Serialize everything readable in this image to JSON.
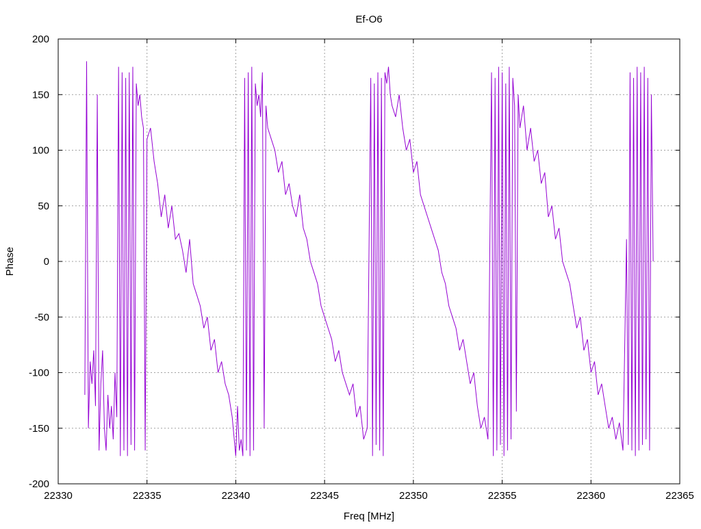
{
  "chart_data": {
    "type": "line",
    "title": "Ef-O6",
    "xlabel": "Freq [MHz]",
    "ylabel": "Phase",
    "xlim": [
      22330,
      22365
    ],
    "ylim": [
      -200,
      200
    ],
    "xticks": [
      22330,
      22335,
      22340,
      22345,
      22350,
      22355,
      22360,
      22365
    ],
    "yticks": [
      -200,
      -150,
      -100,
      -50,
      0,
      50,
      100,
      150,
      200
    ],
    "grid": true,
    "series_color": "#9400d3",
    "series": [
      {
        "x_start": 22331.5,
        "x_end": 22363.5,
        "points": [
          [
            22331.5,
            -120
          ],
          [
            22331.6,
            180
          ],
          [
            22331.7,
            -150
          ],
          [
            22331.8,
            -90
          ],
          [
            22331.9,
            -110
          ],
          [
            22332.0,
            -80
          ],
          [
            22332.1,
            -130
          ],
          [
            22332.2,
            150
          ],
          [
            22332.3,
            -170
          ],
          [
            22332.4,
            -110
          ],
          [
            22332.5,
            -80
          ],
          [
            22332.6,
            -150
          ],
          [
            22332.7,
            -170
          ],
          [
            22332.8,
            -120
          ],
          [
            22332.9,
            -150
          ],
          [
            22333.0,
            -130
          ],
          [
            22333.1,
            -160
          ],
          [
            22333.2,
            -100
          ],
          [
            22333.3,
            -140
          ],
          [
            22333.4,
            175
          ],
          [
            22333.5,
            -175
          ],
          [
            22333.6,
            170
          ],
          [
            22333.7,
            -170
          ],
          [
            22333.8,
            165
          ],
          [
            22333.9,
            -175
          ],
          [
            22334.0,
            170
          ],
          [
            22334.1,
            -165
          ],
          [
            22334.2,
            175
          ],
          [
            22334.3,
            -170
          ],
          [
            22334.4,
            160
          ],
          [
            22334.5,
            140
          ],
          [
            22334.6,
            150
          ],
          [
            22334.7,
            130
          ],
          [
            22334.8,
            120
          ],
          [
            22334.9,
            -170
          ],
          [
            22335.0,
            110
          ],
          [
            22335.2,
            120
          ],
          [
            22335.4,
            90
          ],
          [
            22335.6,
            70
          ],
          [
            22335.8,
            40
          ],
          [
            22336.0,
            60
          ],
          [
            22336.2,
            30
          ],
          [
            22336.4,
            50
          ],
          [
            22336.6,
            20
          ],
          [
            22336.8,
            25
          ],
          [
            22337.0,
            10
          ],
          [
            22337.2,
            -10
          ],
          [
            22337.4,
            20
          ],
          [
            22337.6,
            -20
          ],
          [
            22337.8,
            -30
          ],
          [
            22338.0,
            -40
          ],
          [
            22338.2,
            -60
          ],
          [
            22338.4,
            -50
          ],
          [
            22338.6,
            -80
          ],
          [
            22338.8,
            -70
          ],
          [
            22339.0,
            -100
          ],
          [
            22339.2,
            -90
          ],
          [
            22339.4,
            -110
          ],
          [
            22339.6,
            -120
          ],
          [
            22339.8,
            -140
          ],
          [
            22340.0,
            -175
          ],
          [
            22340.1,
            -130
          ],
          [
            22340.2,
            -170
          ],
          [
            22340.3,
            -160
          ],
          [
            22340.4,
            -175
          ],
          [
            22340.5,
            165
          ],
          [
            22340.6,
            -170
          ],
          [
            22340.7,
            170
          ],
          [
            22340.8,
            -175
          ],
          [
            22340.9,
            175
          ],
          [
            22341.0,
            -170
          ],
          [
            22341.1,
            160
          ],
          [
            22341.2,
            140
          ],
          [
            22341.3,
            150
          ],
          [
            22341.4,
            130
          ],
          [
            22341.5,
            170
          ],
          [
            22341.6,
            -150
          ],
          [
            22341.7,
            140
          ],
          [
            22341.8,
            120
          ],
          [
            22342.0,
            110
          ],
          [
            22342.2,
            100
          ],
          [
            22342.4,
            80
          ],
          [
            22342.6,
            90
          ],
          [
            22342.8,
            60
          ],
          [
            22343.0,
            70
          ],
          [
            22343.2,
            50
          ],
          [
            22343.4,
            40
          ],
          [
            22343.6,
            60
          ],
          [
            22343.8,
            30
          ],
          [
            22344.0,
            20
          ],
          [
            22344.2,
            0
          ],
          [
            22344.4,
            -10
          ],
          [
            22344.6,
            -20
          ],
          [
            22344.8,
            -40
          ],
          [
            22345.0,
            -50
          ],
          [
            22345.2,
            -60
          ],
          [
            22345.4,
            -70
          ],
          [
            22345.6,
            -90
          ],
          [
            22345.8,
            -80
          ],
          [
            22346.0,
            -100
          ],
          [
            22346.2,
            -110
          ],
          [
            22346.4,
            -120
          ],
          [
            22346.6,
            -110
          ],
          [
            22346.8,
            -140
          ],
          [
            22347.0,
            -130
          ],
          [
            22347.2,
            -160
          ],
          [
            22347.4,
            -150
          ],
          [
            22347.6,
            165
          ],
          [
            22347.7,
            -175
          ],
          [
            22347.8,
            160
          ],
          [
            22347.9,
            -165
          ],
          [
            22348.0,
            170
          ],
          [
            22348.1,
            -170
          ],
          [
            22348.2,
            165
          ],
          [
            22348.3,
            -175
          ],
          [
            22348.4,
            170
          ],
          [
            22348.5,
            160
          ],
          [
            22348.6,
            175
          ],
          [
            22348.7,
            150
          ],
          [
            22348.8,
            140
          ],
          [
            22349.0,
            130
          ],
          [
            22349.2,
            150
          ],
          [
            22349.4,
            120
          ],
          [
            22349.6,
            100
          ],
          [
            22349.8,
            110
          ],
          [
            22350.0,
            80
          ],
          [
            22350.2,
            90
          ],
          [
            22350.4,
            60
          ],
          [
            22350.6,
            50
          ],
          [
            22350.8,
            40
          ],
          [
            22351.0,
            30
          ],
          [
            22351.2,
            20
          ],
          [
            22351.4,
            10
          ],
          [
            22351.6,
            -10
          ],
          [
            22351.8,
            -20
          ],
          [
            22352.0,
            -40
          ],
          [
            22352.2,
            -50
          ],
          [
            22352.4,
            -60
          ],
          [
            22352.6,
            -80
          ],
          [
            22352.8,
            -70
          ],
          [
            22353.0,
            -90
          ],
          [
            22353.2,
            -110
          ],
          [
            22353.4,
            -100
          ],
          [
            22353.6,
            -130
          ],
          [
            22353.8,
            -150
          ],
          [
            22354.0,
            -140
          ],
          [
            22354.2,
            -160
          ],
          [
            22354.4,
            170
          ],
          [
            22354.5,
            -175
          ],
          [
            22354.6,
            165
          ],
          [
            22354.7,
            -170
          ],
          [
            22354.8,
            175
          ],
          [
            22354.9,
            -165
          ],
          [
            22355.0,
            170
          ],
          [
            22355.1,
            -175
          ],
          [
            22355.2,
            160
          ],
          [
            22355.3,
            -170
          ],
          [
            22355.4,
            175
          ],
          [
            22355.5,
            -160
          ],
          [
            22355.6,
            165
          ],
          [
            22355.7,
            140
          ],
          [
            22355.8,
            -135
          ],
          [
            22355.9,
            150
          ],
          [
            22356.0,
            120
          ],
          [
            22356.2,
            140
          ],
          [
            22356.4,
            100
          ],
          [
            22356.6,
            120
          ],
          [
            22356.8,
            90
          ],
          [
            22357.0,
            100
          ],
          [
            22357.2,
            70
          ],
          [
            22357.4,
            80
          ],
          [
            22357.6,
            40
          ],
          [
            22357.8,
            50
          ],
          [
            22358.0,
            20
          ],
          [
            22358.2,
            30
          ],
          [
            22358.4,
            0
          ],
          [
            22358.6,
            -10
          ],
          [
            22358.8,
            -20
          ],
          [
            22359.0,
            -40
          ],
          [
            22359.2,
            -60
          ],
          [
            22359.4,
            -50
          ],
          [
            22359.6,
            -80
          ],
          [
            22359.8,
            -70
          ],
          [
            22360.0,
            -100
          ],
          [
            22360.2,
            -90
          ],
          [
            22360.4,
            -120
          ],
          [
            22360.6,
            -110
          ],
          [
            22360.8,
            -130
          ],
          [
            22361.0,
            -150
          ],
          [
            22361.2,
            -140
          ],
          [
            22361.4,
            -160
          ],
          [
            22361.6,
            -145
          ],
          [
            22361.8,
            -170
          ],
          [
            22362.0,
            20
          ],
          [
            22362.1,
            -165
          ],
          [
            22362.2,
            170
          ],
          [
            22362.3,
            -170
          ],
          [
            22362.4,
            165
          ],
          [
            22362.5,
            -175
          ],
          [
            22362.6,
            175
          ],
          [
            22362.7,
            -170
          ],
          [
            22362.8,
            170
          ],
          [
            22362.9,
            -165
          ],
          [
            22363.0,
            175
          ],
          [
            22363.1,
            -160
          ],
          [
            22363.2,
            165
          ],
          [
            22363.3,
            -170
          ],
          [
            22363.4,
            150
          ],
          [
            22363.5,
            0
          ]
        ]
      }
    ]
  }
}
